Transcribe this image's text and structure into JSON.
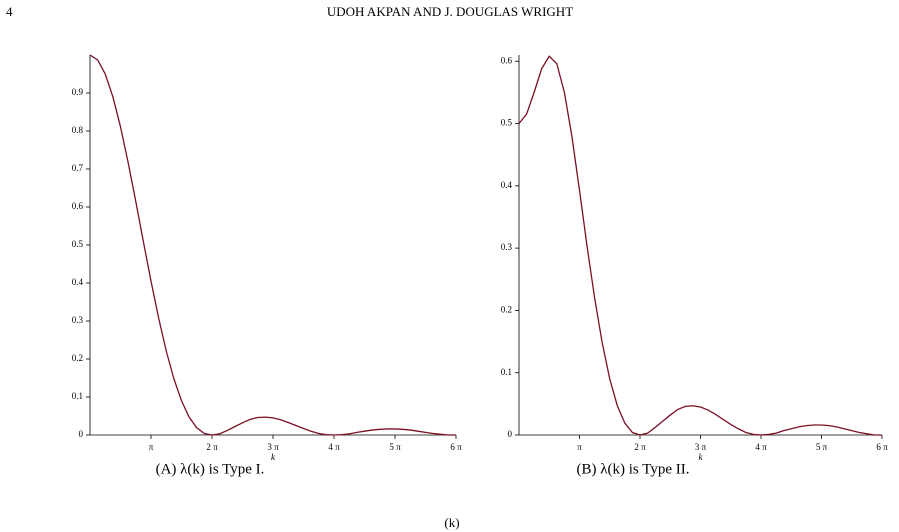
{
  "header": {
    "page_number": "4",
    "running_title": "UDOH AKPAN AND J. DOUGLAS WRIGHT"
  },
  "footer": {
    "fragment": "(k)"
  },
  "chart_data": [
    {
      "type": "line",
      "caption": "(A) λ(k) is Type I.",
      "x_label": "k",
      "color": "#7a1024",
      "xlim": [
        0,
        18.8496
      ],
      "ylim": [
        0,
        1
      ],
      "xticks": [
        {
          "value": 3.1416,
          "label": "π"
        },
        {
          "value": 6.2832,
          "label": "2 π"
        },
        {
          "value": 9.4248,
          "label": "3 π"
        },
        {
          "value": 12.5664,
          "label": "4 π"
        },
        {
          "value": 15.708,
          "label": "5 π"
        },
        {
          "value": 18.8496,
          "label": "6 π"
        }
      ],
      "yticks": [
        0,
        0.1,
        0.2,
        0.3,
        0.4,
        0.5,
        0.6,
        0.7,
        0.8,
        0.9
      ],
      "x": [
        0,
        0.3927,
        0.7854,
        1.1781,
        1.5708,
        1.9635,
        2.3562,
        2.7489,
        3.1416,
        3.5343,
        3.927,
        4.3197,
        4.7124,
        5.1051,
        5.4978,
        5.8905,
        6.2832,
        6.6759,
        7.0686,
        7.4613,
        7.854,
        8.2467,
        8.6394,
        9.0321,
        9.4248,
        9.8175,
        10.2102,
        10.6029,
        10.9956,
        11.3883,
        11.781,
        12.1737,
        12.5664,
        12.9591,
        13.3518,
        13.7445,
        14.1372,
        14.5299,
        14.9226,
        15.3153,
        15.708,
        16.1007,
        16.4934,
        16.8861,
        17.2788,
        17.6715,
        18.0642,
        18.4569,
        18.8496
      ],
      "values": [
        1,
        0.987,
        0.95,
        0.89,
        0.811,
        0.717,
        0.615,
        0.509,
        0.405,
        0.308,
        0.221,
        0.148,
        0.09,
        0.047,
        0.019,
        0.004,
        0,
        0.003,
        0.012,
        0.022,
        0.032,
        0.041,
        0.046,
        0.047,
        0.045,
        0.04,
        0.033,
        0.025,
        0.017,
        0.01,
        0.004,
        0.001,
        0,
        0.001,
        0.003,
        0.007,
        0.01,
        0.013,
        0.015,
        0.016,
        0.016,
        0.015,
        0.013,
        0.01,
        0.007,
        0.004,
        0.002,
        0,
        0
      ]
    },
    {
      "type": "line",
      "caption": "(B) λ(k) is Type II.",
      "x_label": "k",
      "color": "#7a1024",
      "xlim": [
        0,
        18.8496
      ],
      "ylim": [
        0,
        0.61
      ],
      "xticks": [
        {
          "value": 3.1416,
          "label": "π"
        },
        {
          "value": 6.2832,
          "label": "2 π"
        },
        {
          "value": 9.4248,
          "label": "3 π"
        },
        {
          "value": 12.5664,
          "label": "4 π"
        },
        {
          "value": 15.708,
          "label": "5 π"
        },
        {
          "value": 18.8496,
          "label": "6 π"
        }
      ],
      "yticks": [
        0,
        0.1,
        0.2,
        0.3,
        0.4,
        0.5,
        0.6
      ],
      "x": [
        0,
        0.3927,
        0.7854,
        1.1781,
        1.5708,
        1.9635,
        2.3562,
        2.7489,
        3.1416,
        3.5343,
        3.927,
        4.3197,
        4.7124,
        5.1051,
        5.4978,
        5.8905,
        6.2832,
        6.6759,
        7.0686,
        7.4613,
        7.854,
        8.2467,
        8.6394,
        9.0321,
        9.4248,
        9.8175,
        10.2102,
        10.6029,
        10.9956,
        11.3883,
        11.781,
        12.1737,
        12.5664,
        12.9591,
        13.3518,
        13.7445,
        14.1372,
        14.5299,
        14.9226,
        15.3153,
        15.708,
        16.1007,
        16.4934,
        16.8861,
        17.2788,
        17.6715,
        18.0642,
        18.4569,
        18.8496
      ],
      "values": [
        0.5,
        0.515,
        0.55,
        0.588,
        0.608,
        0.596,
        0.55,
        0.479,
        0.393,
        0.303,
        0.22,
        0.148,
        0.09,
        0.047,
        0.019,
        0.004,
        0,
        0.003,
        0.012,
        0.022,
        0.032,
        0.041,
        0.046,
        0.047,
        0.045,
        0.04,
        0.033,
        0.025,
        0.017,
        0.01,
        0.004,
        0.001,
        0,
        0.001,
        0.003,
        0.007,
        0.01,
        0.013,
        0.015,
        0.016,
        0.016,
        0.015,
        0.013,
        0.01,
        0.007,
        0.004,
        0.002,
        0,
        0
      ]
    }
  ]
}
